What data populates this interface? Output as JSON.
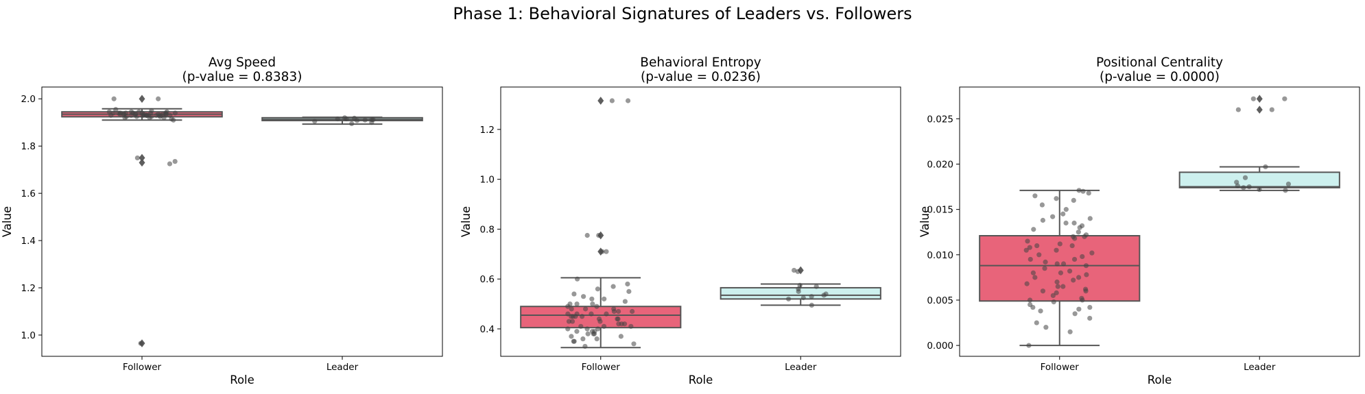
{
  "suptitle": "Phase 1: Behavioral Signatures of Leaders vs. Followers",
  "colors": {
    "follower": "#e8647a",
    "leader": "#cdf0ee",
    "edge": "#555555",
    "strip": "#444444"
  },
  "chart_data": [
    {
      "type": "box",
      "title": "Avg Speed",
      "subtitle": "(p-value = 0.8383)",
      "xlabel": "Role",
      "ylabel": "Value",
      "categories": [
        "Follower",
        "Leader"
      ],
      "ylim": [
        0.91,
        2.05
      ],
      "yticks": [
        1.0,
        1.2,
        1.4,
        1.6,
        1.8,
        2.0
      ],
      "ytick_labels": [
        "1.0",
        "1.2",
        "1.4",
        "1.6",
        "1.8",
        "2.0"
      ],
      "boxes": [
        {
          "q1": 1.924,
          "median": 1.935,
          "q3": 1.945,
          "whisker_low": 1.91,
          "whisker_high": 1.958,
          "outliers": [
            2.0,
            1.75,
            1.73,
            0.965
          ]
        },
        {
          "q1": 1.908,
          "median": 1.913,
          "q3": 1.92,
          "whisker_low": 1.893,
          "whisker_high": 1.922,
          "outliers": []
        }
      ],
      "points": [
        [
          1.94,
          1.935,
          1.93,
          1.945,
          1.925,
          1.92,
          1.93,
          1.94,
          1.935,
          1.93,
          1.945,
          1.93,
          1.92,
          1.935,
          1.94,
          1.93,
          1.925,
          1.935,
          1.94,
          1.93,
          1.945,
          1.935,
          1.93,
          1.94,
          1.915,
          1.935,
          1.925,
          1.94,
          1.93,
          1.935,
          1.945,
          1.93,
          1.94,
          1.935,
          1.93,
          1.955,
          1.95,
          1.91,
          1.92,
          1.94,
          1.93,
          1.935,
          1.925,
          1.94,
          1.93,
          1.935,
          2.0,
          2.0,
          1.75,
          1.735,
          1.725,
          0.965
        ],
        [
          1.915,
          1.912,
          1.908,
          1.92,
          1.915,
          1.91,
          1.918,
          1.905,
          1.912,
          1.9,
          1.895
        ]
      ]
    },
    {
      "type": "box",
      "title": "Behavioral Entropy",
      "subtitle": "(p-value = 0.0236)",
      "xlabel": "Role",
      "ylabel": "Value",
      "categories": [
        "Follower",
        "Leader"
      ],
      "ylim": [
        0.29,
        1.37
      ],
      "yticks": [
        0.4,
        0.6,
        0.8,
        1.0,
        1.2
      ],
      "ytick_labels": [
        "0.4",
        "0.6",
        "0.8",
        "1.0",
        "1.2"
      ],
      "boxes": [
        {
          "q1": 0.405,
          "median": 0.455,
          "q3": 0.49,
          "whisker_low": 0.325,
          "whisker_high": 0.605,
          "outliers": [
            1.315,
            0.775,
            0.71
          ]
        },
        {
          "q1": 0.52,
          "median": 0.535,
          "q3": 0.565,
          "whisker_low": 0.495,
          "whisker_high": 0.58,
          "outliers": [
            0.635
          ]
        }
      ],
      "points": [
        [
          0.33,
          0.34,
          0.35,
          0.36,
          0.37,
          0.38,
          0.38,
          0.39,
          0.39,
          0.4,
          0.4,
          0.41,
          0.41,
          0.42,
          0.42,
          0.43,
          0.43,
          0.44,
          0.44,
          0.45,
          0.45,
          0.45,
          0.46,
          0.46,
          0.46,
          0.47,
          0.47,
          0.48,
          0.48,
          0.48,
          0.49,
          0.49,
          0.5,
          0.5,
          0.51,
          0.52,
          0.53,
          0.54,
          0.55,
          0.56,
          0.57,
          0.58,
          0.6,
          0.4,
          0.42,
          0.44,
          0.46,
          0.38,
          0.36,
          0.5,
          0.52,
          0.47,
          0.45,
          0.43,
          0.41,
          0.39,
          0.37,
          0.35,
          1.315,
          1.315,
          0.775,
          0.775,
          0.71,
          0.71
        ],
        [
          0.495,
          0.52,
          0.525,
          0.53,
          0.535,
          0.54,
          0.55,
          0.56,
          0.57,
          0.575,
          0.635,
          0.63
        ]
      ]
    },
    {
      "type": "box",
      "title": "Positional Centrality",
      "subtitle": "(p-value = 0.0000)",
      "xlabel": "Role",
      "ylabel": "Value",
      "categories": [
        "Follower",
        "Leader"
      ],
      "ylim": [
        -0.0012,
        0.0285
      ],
      "yticks": [
        0.0,
        0.005,
        0.01,
        0.015,
        0.02,
        0.025
      ],
      "ytick_labels": [
        "0.000",
        "0.005",
        "0.010",
        "0.015",
        "0.020",
        "0.025"
      ],
      "boxes": [
        {
          "q1": 0.0049,
          "median": 0.0088,
          "q3": 0.0121,
          "whisker_low": 0.0,
          "whisker_high": 0.0171,
          "outliers": []
        },
        {
          "q1": 0.0174,
          "median": 0.0175,
          "q3": 0.0191,
          "whisker_low": 0.0171,
          "whisker_high": 0.0197,
          "outliers": [
            0.0272,
            0.026
          ]
        }
      ],
      "points": [
        [
          0.0,
          0.0015,
          0.002,
          0.0025,
          0.003,
          0.0035,
          0.0038,
          0.004,
          0.0042,
          0.0045,
          0.0048,
          0.005,
          0.0052,
          0.0055,
          0.0058,
          0.006,
          0.0062,
          0.0065,
          0.0068,
          0.007,
          0.0072,
          0.0075,
          0.0078,
          0.008,
          0.0082,
          0.0085,
          0.0088,
          0.009,
          0.0092,
          0.0095,
          0.0098,
          0.01,
          0.0102,
          0.0105,
          0.0108,
          0.011,
          0.0112,
          0.0115,
          0.0118,
          0.012,
          0.0122,
          0.0125,
          0.0128,
          0.013,
          0.0132,
          0.0135,
          0.0138,
          0.014,
          0.0142,
          0.0145,
          0.015,
          0.0155,
          0.016,
          0.0162,
          0.0165,
          0.0168,
          0.017,
          0.0171,
          0.0042,
          0.006,
          0.0075,
          0.009,
          0.0105,
          0.012,
          0.0135,
          0.005,
          0.0065,
          0.008,
          0.0095,
          0.011
        ],
        [
          0.0171,
          0.0172,
          0.0174,
          0.0175,
          0.0176,
          0.0178,
          0.018,
          0.0185,
          0.0197,
          0.026,
          0.026,
          0.0272,
          0.0272
        ]
      ]
    }
  ]
}
